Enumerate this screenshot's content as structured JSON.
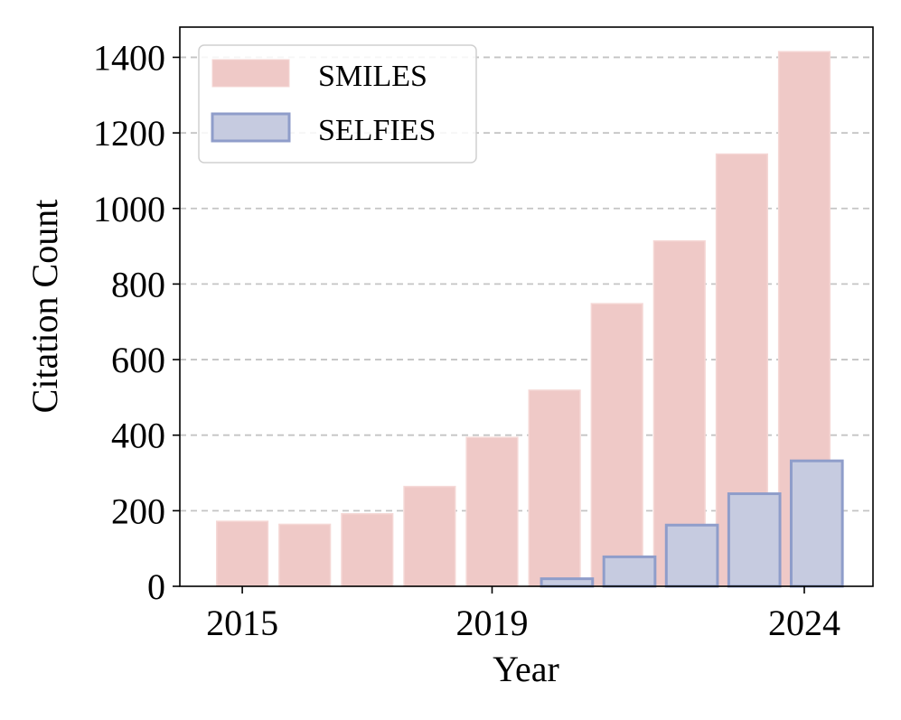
{
  "chart_data": {
    "type": "bar",
    "title": "",
    "xlabel": "Year",
    "ylabel": "Citation Count",
    "ylim": [
      0,
      1480
    ],
    "xlim": [
      2014.0,
      2025.1
    ],
    "yticks": [
      0,
      200,
      400,
      600,
      800,
      1000,
      1200,
      1400
    ],
    "xticks": [
      2015,
      2019,
      2024
    ],
    "grid": "y-dashed",
    "legend_position": "top-left",
    "series": [
      {
        "name": "SMILES",
        "color": "#efc9c7",
        "edge_color": "#f5d7d5",
        "offset": 0,
        "x": [
          2015,
          2016,
          2017,
          2018,
          2019,
          2020,
          2021,
          2022,
          2023,
          2024
        ],
        "values": [
          172,
          164,
          192,
          264,
          394,
          519,
          748,
          914,
          1144,
          1415
        ]
      },
      {
        "name": "SELFIES",
        "color": "#c6cbe0",
        "edge_color": "#8f9dca",
        "offset": 0.2,
        "x": [
          2020,
          2021,
          2022,
          2023,
          2024
        ],
        "values": [
          20,
          78,
          162,
          245,
          332
        ]
      }
    ]
  }
}
